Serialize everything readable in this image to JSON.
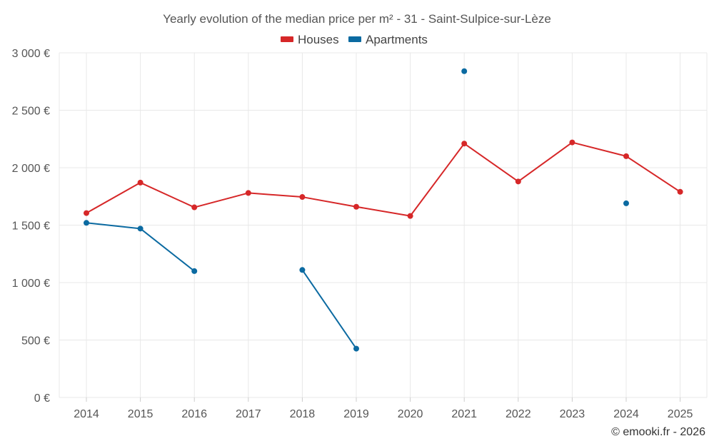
{
  "chart_data": {
    "type": "line",
    "title": "Yearly evolution of the median price per m² - 31 - Saint-Sulpice-sur-Lèze",
    "categories": [
      "2014",
      "2015",
      "2016",
      "2017",
      "2018",
      "2019",
      "2020",
      "2021",
      "2022",
      "2023",
      "2024",
      "2025"
    ],
    "y_ticks": [
      0,
      500,
      1000,
      1500,
      2000,
      2500,
      3000
    ],
    "y_tick_labels": [
      "0 €",
      "500 €",
      "1 000 €",
      "1 500 €",
      "2 000 €",
      "2 500 €",
      "3 000 €"
    ],
    "ylim": [
      0,
      3000
    ],
    "grid": true,
    "legend_position": "top-center",
    "series": [
      {
        "name": "Houses",
        "color": "#d62728",
        "values": [
          1605,
          1870,
          1655,
          1780,
          1745,
          1660,
          1580,
          2210,
          1880,
          2220,
          2100,
          1790
        ]
      },
      {
        "name": "Apartments",
        "color": "#0b6aa1",
        "values": [
          1520,
          1470,
          1100,
          null,
          1110,
          425,
          null,
          2840,
          null,
          null,
          1690,
          null
        ]
      }
    ]
  },
  "footer": {
    "copyright": "© emooki.fr - 2026"
  }
}
